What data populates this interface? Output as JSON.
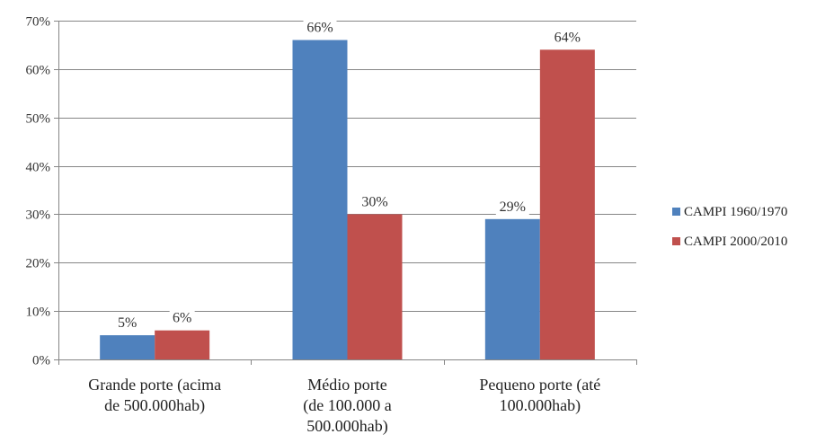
{
  "chart_data": {
    "type": "bar",
    "title": "",
    "xlabel": "",
    "ylabel": "",
    "ylim": [
      0,
      70
    ],
    "ytick_step": 10,
    "ytick_suffix": "%",
    "grid": true,
    "legend_position": "right",
    "categories": [
      [
        "Grande porte (acima",
        "de 500.000hab)"
      ],
      [
        "Médio porte",
        "(de 100.000 a",
        "500.000hab)"
      ],
      [
        "Pequeno porte (até",
        "100.000hab)"
      ]
    ],
    "series": [
      {
        "name": "CAMPI 1960/1970",
        "color": "#4f81bd",
        "values": [
          5,
          66,
          29
        ],
        "labels": [
          "5%",
          "66%",
          "29%"
        ]
      },
      {
        "name": "CAMPI 2000/2010",
        "color": "#c0504d",
        "values": [
          6,
          30,
          64
        ],
        "labels": [
          "6%",
          "30%",
          "64%"
        ]
      }
    ]
  }
}
